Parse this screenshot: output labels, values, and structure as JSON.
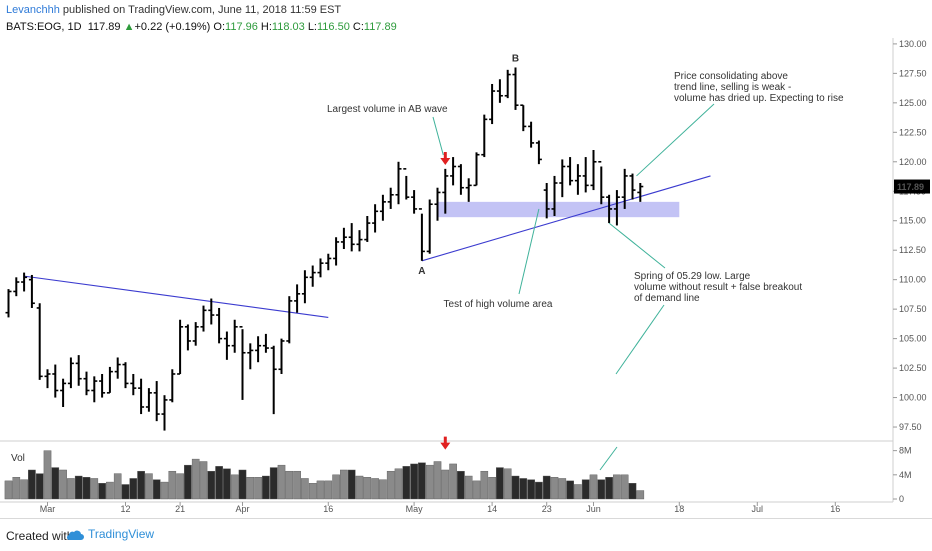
{
  "header": {
    "author": "Levanchhh",
    "published": "published on TradingView.com, June 11, 2018 11:59 EST",
    "symbol": "BATS:EOG, 1D",
    "last": "117.89",
    "change": "+0.22 (+0.19%)",
    "o_label": "O:",
    "o": "117.96",
    "h_label": "H:",
    "h": "118.03",
    "l_label": "L:",
    "l": "116.50",
    "c_label": "C:",
    "c": "117.89"
  },
  "footer": {
    "created_with": "Created with",
    "brand": "TradingView"
  },
  "colors": {
    "bar": "#000000",
    "trendline": "#3b3bcf",
    "zone": "#b9b9f3",
    "annotation_line": "#3fb29a",
    "label_blue": "#1f5e9c",
    "arrow_red": "#e02020",
    "price_tag": "#000000"
  },
  "chart_data": {
    "type": "ohlc",
    "symbol": "BATS:EOG",
    "interval": "1D",
    "price_axis": {
      "ticks": [
        97.5,
        100.0,
        102.5,
        105.0,
        107.5,
        110.0,
        112.5,
        115.0,
        117.5,
        120.0,
        122.5,
        125.0,
        127.5,
        130.0
      ],
      "min": 96.4,
      "max": 130.5
    },
    "last_price_tag": "117.89",
    "x_ticks": [
      {
        "label": "Mar",
        "bar": 5
      },
      {
        "label": "12",
        "bar": 15
      },
      {
        "label": "21",
        "bar": 22
      },
      {
        "label": "Apr",
        "bar": 30
      },
      {
        "label": "16",
        "bar": 41
      },
      {
        "label": "May",
        "bar": 52
      },
      {
        "label": "14",
        "bar": 62
      },
      {
        "label": "23",
        "bar": 69
      },
      {
        "label": "Jun",
        "bar": 75
      },
      {
        "label": "18",
        "bar": 86
      },
      {
        "label": "Jul",
        "bar": 96
      },
      {
        "label": "16",
        "bar": 106
      }
    ],
    "volume_axis": {
      "ticks": [
        "8M",
        "4M",
        "0"
      ],
      "label": "Vol"
    },
    "bars": [
      {
        "h": 109.2,
        "l": 106.8,
        "o": 107.2,
        "c": 109.0,
        "v": 3.0
      },
      {
        "h": 110.2,
        "l": 108.6,
        "o": 109.0,
        "c": 109.8,
        "v": 3.6
      },
      {
        "h": 110.6,
        "l": 109.0,
        "o": 109.8,
        "c": 110.2,
        "v": 3.2
      },
      {
        "h": 110.4,
        "l": 107.6,
        "o": 110.0,
        "c": 108.0,
        "v": 4.8
      },
      {
        "h": 108.0,
        "l": 101.5,
        "o": 107.6,
        "c": 101.8,
        "v": 4.2
      },
      {
        "h": 102.4,
        "l": 100.8,
        "o": 101.8,
        "c": 102.0,
        "v": 8.0
      },
      {
        "h": 102.8,
        "l": 100.0,
        "o": 102.0,
        "c": 100.6,
        "v": 5.2
      },
      {
        "h": 101.6,
        "l": 99.2,
        "o": 100.6,
        "c": 101.2,
        "v": 4.8
      },
      {
        "h": 103.4,
        "l": 100.8,
        "o": 101.2,
        "c": 102.9,
        "v": 3.4
      },
      {
        "h": 103.6,
        "l": 101.0,
        "o": 102.9,
        "c": 101.6,
        "v": 3.8
      },
      {
        "h": 102.2,
        "l": 100.2,
        "o": 101.6,
        "c": 100.6,
        "v": 3.6
      },
      {
        "h": 101.8,
        "l": 99.6,
        "o": 100.6,
        "c": 101.4,
        "v": 3.4
      },
      {
        "h": 102.0,
        "l": 100.0,
        "o": 101.4,
        "c": 100.4,
        "v": 2.6
      },
      {
        "h": 102.6,
        "l": 100.4,
        "o": 100.4,
        "c": 102.2,
        "v": 2.8
      },
      {
        "h": 103.4,
        "l": 101.6,
        "o": 102.2,
        "c": 102.8,
        "v": 4.2
      },
      {
        "h": 103.0,
        "l": 100.8,
        "o": 102.8,
        "c": 101.2,
        "v": 2.4
      },
      {
        "h": 102.0,
        "l": 100.2,
        "o": 101.2,
        "c": 100.8,
        "v": 3.4
      },
      {
        "h": 101.6,
        "l": 98.6,
        "o": 100.8,
        "c": 99.2,
        "v": 4.6
      },
      {
        "h": 100.8,
        "l": 98.8,
        "o": 99.2,
        "c": 100.4,
        "v": 4.2
      },
      {
        "h": 101.4,
        "l": 98.0,
        "o": 100.4,
        "c": 98.6,
        "v": 3.2
      },
      {
        "h": 100.2,
        "l": 97.2,
        "o": 98.6,
        "c": 99.8,
        "v": 2.8
      },
      {
        "h": 102.4,
        "l": 99.6,
        "o": 99.8,
        "c": 102.0,
        "v": 4.6
      },
      {
        "h": 106.6,
        "l": 102.0,
        "o": 102.0,
        "c": 106.0,
        "v": 4.2
      },
      {
        "h": 106.2,
        "l": 104.0,
        "o": 106.0,
        "c": 104.8,
        "v": 5.6
      },
      {
        "h": 106.4,
        "l": 104.4,
        "o": 104.8,
        "c": 106.0,
        "v": 6.6
      },
      {
        "h": 107.8,
        "l": 105.6,
        "o": 106.0,
        "c": 107.4,
        "v": 6.2
      },
      {
        "h": 108.4,
        "l": 106.2,
        "o": 107.4,
        "c": 107.0,
        "v": 4.6
      },
      {
        "h": 107.6,
        "l": 104.6,
        "o": 107.0,
        "c": 105.0,
        "v": 5.4
      },
      {
        "h": 105.6,
        "l": 103.2,
        "o": 105.0,
        "c": 104.4,
        "v": 5.0
      },
      {
        "h": 106.6,
        "l": 103.8,
        "o": 104.4,
        "c": 106.0,
        "v": 4.0
      },
      {
        "h": 105.8,
        "l": 99.8,
        "o": 106.0,
        "c": 103.8,
        "v": 4.8
      },
      {
        "h": 104.6,
        "l": 102.4,
        "o": 103.8,
        "c": 104.0,
        "v": 3.6
      },
      {
        "h": 105.2,
        "l": 103.0,
        "o": 104.0,
        "c": 104.4,
        "v": 3.6
      },
      {
        "h": 105.4,
        "l": 103.8,
        "o": 104.4,
        "c": 104.2,
        "v": 3.8
      },
      {
        "h": 104.4,
        "l": 98.6,
        "o": 104.2,
        "c": 102.4,
        "v": 5.2
      },
      {
        "h": 105.0,
        "l": 102.0,
        "o": 102.4,
        "c": 104.8,
        "v": 5.6
      },
      {
        "h": 108.6,
        "l": 104.6,
        "o": 104.8,
        "c": 108.2,
        "v": 4.6
      },
      {
        "h": 109.6,
        "l": 107.2,
        "o": 108.2,
        "c": 108.8,
        "v": 4.6
      },
      {
        "h": 110.8,
        "l": 108.0,
        "o": 108.8,
        "c": 110.2,
        "v": 3.4
      },
      {
        "h": 111.2,
        "l": 109.4,
        "o": 110.2,
        "c": 110.6,
        "v": 2.6
      },
      {
        "h": 111.8,
        "l": 110.2,
        "o": 110.6,
        "c": 111.4,
        "v": 3.0
      },
      {
        "h": 112.2,
        "l": 110.8,
        "o": 111.4,
        "c": 111.8,
        "v": 3.0
      },
      {
        "h": 113.6,
        "l": 111.2,
        "o": 111.8,
        "c": 113.2,
        "v": 4.0
      },
      {
        "h": 114.4,
        "l": 112.6,
        "o": 113.2,
        "c": 113.6,
        "v": 4.8
      },
      {
        "h": 114.8,
        "l": 112.4,
        "o": 113.6,
        "c": 113.0,
        "v": 4.8
      },
      {
        "h": 114.2,
        "l": 112.4,
        "o": 113.0,
        "c": 113.4,
        "v": 3.8
      },
      {
        "h": 115.4,
        "l": 113.2,
        "o": 113.4,
        "c": 114.8,
        "v": 3.6
      },
      {
        "h": 116.4,
        "l": 114.0,
        "o": 114.8,
        "c": 115.8,
        "v": 3.4
      },
      {
        "h": 117.2,
        "l": 115.0,
        "o": 115.8,
        "c": 116.6,
        "v": 3.2
      },
      {
        "h": 117.8,
        "l": 116.0,
        "o": 116.6,
        "c": 117.2,
        "v": 4.6
      },
      {
        "h": 120.0,
        "l": 116.4,
        "o": 117.2,
        "c": 119.4,
        "v": 5.0
      },
      {
        "h": 118.8,
        "l": 116.8,
        "o": 119.4,
        "c": 117.0,
        "v": 5.4
      },
      {
        "h": 117.6,
        "l": 115.6,
        "o": 117.0,
        "c": 116.0,
        "v": 5.8
      },
      {
        "h": 115.6,
        "l": 111.6,
        "o": 116.0,
        "c": 112.4,
        "v": 6.0
      },
      {
        "h": 116.8,
        "l": 112.2,
        "o": 112.4,
        "c": 116.4,
        "v": 5.6
      },
      {
        "h": 117.8,
        "l": 115.0,
        "o": 116.4,
        "c": 117.4,
        "v": 6.2
      },
      {
        "h": 119.4,
        "l": 115.6,
        "o": 117.4,
        "c": 118.8,
        "v": 4.8
      },
      {
        "h": 120.4,
        "l": 118.0,
        "o": 118.8,
        "c": 119.6,
        "v": 5.8
      },
      {
        "h": 119.8,
        "l": 117.2,
        "o": 119.6,
        "c": 117.8,
        "v": 4.6
      },
      {
        "h": 118.6,
        "l": 116.6,
        "o": 117.8,
        "c": 118.0,
        "v": 3.8
      },
      {
        "h": 120.8,
        "l": 118.0,
        "o": 118.0,
        "c": 120.6,
        "v": 3.0
      },
      {
        "h": 124.0,
        "l": 120.4,
        "o": 120.6,
        "c": 123.6,
        "v": 4.6
      },
      {
        "h": 126.6,
        "l": 123.2,
        "o": 123.6,
        "c": 126.0,
        "v": 3.6
      },
      {
        "h": 127.0,
        "l": 125.0,
        "o": 126.0,
        "c": 125.6,
        "v": 5.2
      },
      {
        "h": 127.8,
        "l": 125.4,
        "o": 125.6,
        "c": 127.4,
        "v": 5.0
      },
      {
        "h": 128.0,
        "l": 124.4,
        "o": 127.4,
        "c": 124.8,
        "v": 3.8
      },
      {
        "h": 124.8,
        "l": 122.6,
        "o": 124.8,
        "c": 123.0,
        "v": 3.4
      },
      {
        "h": 123.4,
        "l": 121.2,
        "o": 123.0,
        "c": 121.6,
        "v": 3.2
      },
      {
        "h": 121.8,
        "l": 119.8,
        "o": 121.6,
        "c": 120.2,
        "v": 2.8
      },
      {
        "h": 118.2,
        "l": 115.2,
        "o": 117.6,
        "c": 116.0,
        "v": 3.8
      },
      {
        "h": 118.8,
        "l": 115.4,
        "o": 116.0,
        "c": 118.2,
        "v": 3.6
      },
      {
        "h": 120.2,
        "l": 117.0,
        "o": 118.2,
        "c": 119.6,
        "v": 3.4
      },
      {
        "h": 120.4,
        "l": 118.0,
        "o": 119.6,
        "c": 118.4,
        "v": 3.0
      },
      {
        "h": 119.8,
        "l": 117.2,
        "o": 118.4,
        "c": 118.8,
        "v": 2.4
      },
      {
        "h": 120.4,
        "l": 117.4,
        "o": 118.8,
        "c": 118.0,
        "v": 3.2
      },
      {
        "h": 121.0,
        "l": 117.6,
        "o": 118.0,
        "c": 120.0,
        "v": 4.0
      },
      {
        "h": 119.6,
        "l": 116.4,
        "o": 120.0,
        "c": 117.0,
        "v": 3.2
      },
      {
        "h": 117.2,
        "l": 114.8,
        "o": 117.0,
        "c": 116.0,
        "v": 3.6
      },
      {
        "h": 117.6,
        "l": 114.6,
        "o": 116.0,
        "c": 117.0,
        "v": 4.0
      },
      {
        "h": 119.4,
        "l": 116.0,
        "o": 117.0,
        "c": 118.8,
        "v": 4.0
      },
      {
        "h": 119.0,
        "l": 116.8,
        "o": 118.8,
        "c": 117.6,
        "v": 2.6
      },
      {
        "h": 118.2,
        "l": 116.6,
        "o": 117.4,
        "c": 117.9,
        "v": 1.4
      }
    ],
    "lines": [
      {
        "name": "descending-trendline",
        "from": {
          "bar": 2,
          "price": 110.3
        },
        "to": {
          "bar": 41,
          "price": 106.8
        }
      },
      {
        "name": "ascending-trendline",
        "from": {
          "bar": 53,
          "price": 111.6
        },
        "to": {
          "bar": 90,
          "price": 118.8
        }
      }
    ],
    "zone": {
      "from_bar": 55,
      "to_bar": 86,
      "low": 115.3,
      "high": 116.6
    },
    "labels": [
      {
        "text": "A",
        "bar": 53,
        "price": 111.6,
        "position": "below"
      },
      {
        "text": "B",
        "bar": 65,
        "price": 128.0,
        "position": "above"
      }
    ],
    "annotations": [
      {
        "lines": [
          "Largest volume in AB wave"
        ]
      },
      {
        "lines": [
          "Test of high volume area"
        ]
      },
      {
        "lines": [
          "Price consolidating above",
          "trend line, selling is weak -",
          "volume has dried up. Expecting to rise"
        ]
      },
      {
        "lines": [
          "Spring of 05.29 low. Large",
          "volume without result + false breakout",
          "of demand line"
        ]
      }
    ]
  }
}
